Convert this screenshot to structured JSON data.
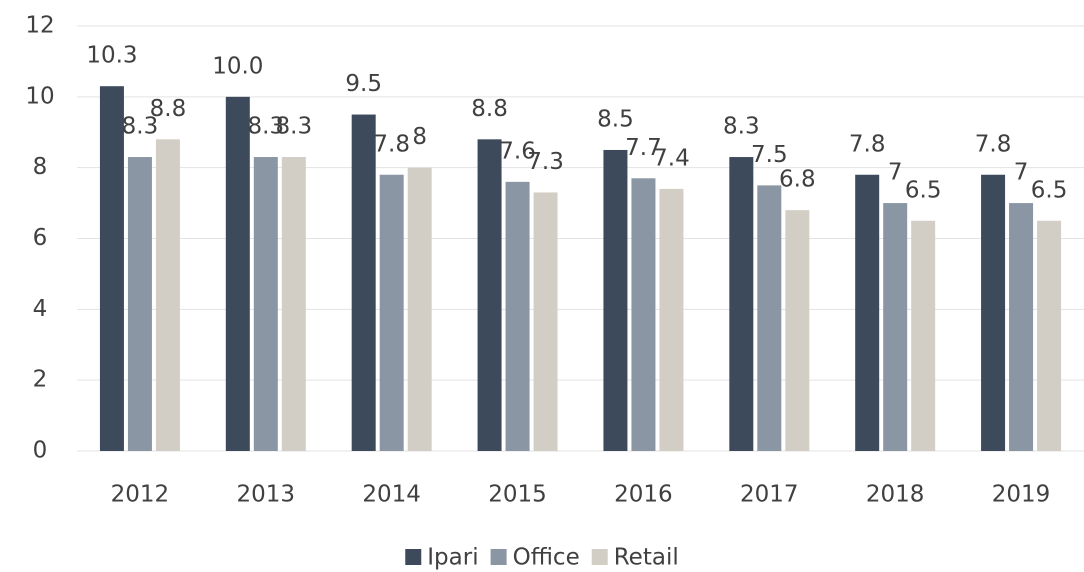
{
  "chart_data": {
    "type": "bar",
    "categories": [
      "2012",
      "2013",
      "2014",
      "2015",
      "2016",
      "2017",
      "2018",
      "2019"
    ],
    "series": [
      {
        "name": "Ipari",
        "color": "#3d4a5c",
        "values": [
          10.3,
          10,
          9.5,
          8.8,
          8.5,
          8.3,
          7.8,
          7.8
        ],
        "value_labels": [
          "10.3",
          "10.0",
          "9.5",
          "8.8",
          "8.5",
          "8.3",
          "7.8",
          "7.8"
        ]
      },
      {
        "name": "Office",
        "color": "#8a96a3",
        "values": [
          8.3,
          8.3,
          7.8,
          7.6,
          7.7,
          7.5,
          7,
          7
        ]
      },
      {
        "name": "Retail",
        "color": "#d3cec5",
        "values": [
          8.8,
          8.3,
          8,
          7.3,
          7.4,
          6.8,
          6.5,
          6.5
        ]
      }
    ],
    "ylim": [
      0,
      12
    ],
    "yticks": [
      0,
      2,
      4,
      6,
      8,
      10,
      12
    ],
    "grid": true,
    "legend": "bottom"
  }
}
